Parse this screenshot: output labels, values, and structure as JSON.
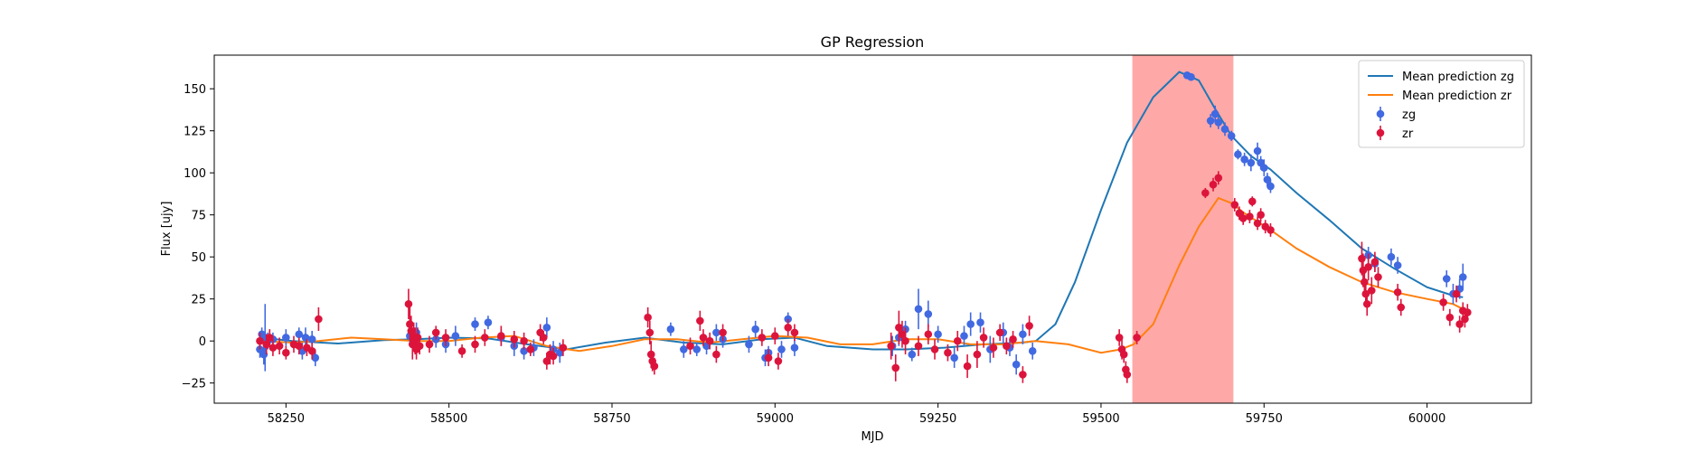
{
  "chart_data": {
    "type": "scatter",
    "title": "GP Regression",
    "xlabel": "MJD",
    "ylabel": "Flux [ujy]",
    "xlim": [
      58140,
      60160
    ],
    "ylim": [
      -37,
      170
    ],
    "xticks": [
      58250,
      58500,
      58750,
      59000,
      59250,
      59500,
      59750,
      60000
    ],
    "yticks": [
      -25,
      0,
      25,
      50,
      75,
      100,
      125,
      150
    ],
    "grid": false,
    "legend_position": "top-right",
    "shaded_region": {
      "x_start": 59548,
      "x_end": 59703,
      "color": "#ffa8a8"
    },
    "series": [
      {
        "name": "Mean prediction zg",
        "kind": "line",
        "color": "#1f77b4",
        "points": [
          [
            58212,
            2
          ],
          [
            58260,
            0
          ],
          [
            58330,
            -1.5
          ],
          [
            58400,
            0.5
          ],
          [
            58450,
            1
          ],
          [
            58500,
            2
          ],
          [
            58560,
            1.5
          ],
          [
            58620,
            -2
          ],
          [
            58680,
            -5
          ],
          [
            58740,
            -1
          ],
          [
            58800,
            2
          ],
          [
            58860,
            -1
          ],
          [
            58920,
            -2
          ],
          [
            58980,
            1
          ],
          [
            59030,
            2
          ],
          [
            59080,
            -3
          ],
          [
            59150,
            -5
          ],
          [
            59200,
            -5
          ],
          [
            59260,
            -4
          ],
          [
            59320,
            -2
          ],
          [
            59380,
            -1
          ],
          [
            59400,
            0
          ],
          [
            59430,
            10
          ],
          [
            59460,
            35
          ],
          [
            59500,
            78
          ],
          [
            59540,
            118
          ],
          [
            59580,
            145
          ],
          [
            59620,
            160
          ],
          [
            59650,
            155
          ],
          [
            59675,
            138
          ],
          [
            59700,
            122
          ],
          [
            59730,
            110
          ],
          [
            59760,
            102
          ],
          [
            59800,
            88
          ],
          [
            59850,
            72
          ],
          [
            59900,
            55
          ],
          [
            59950,
            43
          ],
          [
            60000,
            32
          ],
          [
            60040,
            27
          ],
          [
            60055,
            26
          ]
        ]
      },
      {
        "name": "Mean prediction zr",
        "kind": "line",
        "color": "#ff7f0e",
        "points": [
          [
            58212,
            0
          ],
          [
            58260,
            -1
          ],
          [
            58300,
            0
          ],
          [
            58350,
            2
          ],
          [
            58400,
            1
          ],
          [
            58450,
            0
          ],
          [
            58500,
            0
          ],
          [
            58550,
            2
          ],
          [
            58600,
            3
          ],
          [
            58650,
            -3
          ],
          [
            58700,
            -6
          ],
          [
            58750,
            -3
          ],
          [
            58800,
            1
          ],
          [
            58850,
            1
          ],
          [
            58900,
            -1
          ],
          [
            58950,
            1
          ],
          [
            59000,
            3
          ],
          [
            59050,
            2
          ],
          [
            59100,
            -2
          ],
          [
            59150,
            -2
          ],
          [
            59200,
            1
          ],
          [
            59250,
            1
          ],
          [
            59300,
            -2
          ],
          [
            59350,
            -2
          ],
          [
            59400,
            0
          ],
          [
            59450,
            -2
          ],
          [
            59500,
            -7
          ],
          [
            59530,
            -5
          ],
          [
            59550,
            -2
          ],
          [
            59580,
            10
          ],
          [
            59620,
            45
          ],
          [
            59650,
            68
          ],
          [
            59680,
            85
          ],
          [
            59700,
            82
          ],
          [
            59720,
            76
          ],
          [
            59760,
            66
          ],
          [
            59800,
            55
          ],
          [
            59850,
            44
          ],
          [
            59900,
            35
          ],
          [
            59950,
            29
          ],
          [
            60000,
            25
          ],
          [
            60040,
            22
          ],
          [
            60060,
            18
          ]
        ]
      },
      {
        "name": "zg",
        "kind": "errorbar",
        "color": "#4169e1",
        "points": [
          [
            58210,
            -5,
            5
          ],
          [
            58213,
            4,
            4
          ],
          [
            58216,
            -8,
            6
          ],
          [
            58218,
            2,
            20
          ],
          [
            58222,
            0,
            5
          ],
          [
            58230,
            1,
            4
          ],
          [
            58250,
            2,
            5
          ],
          [
            58270,
            4,
            4
          ],
          [
            58275,
            -6,
            5
          ],
          [
            58280,
            2,
            6
          ],
          [
            58290,
            1,
            5
          ],
          [
            58295,
            -10,
            5
          ],
          [
            58440,
            3,
            5
          ],
          [
            58450,
            5,
            6
          ],
          [
            58480,
            1,
            5
          ],
          [
            58495,
            -2,
            5
          ],
          [
            58510,
            3,
            6
          ],
          [
            58540,
            10,
            4
          ],
          [
            58560,
            11,
            4
          ],
          [
            58580,
            2,
            5
          ],
          [
            58600,
            -3,
            6
          ],
          [
            58615,
            -6,
            5
          ],
          [
            58630,
            -4,
            5
          ],
          [
            58650,
            8,
            6
          ],
          [
            58660,
            -5,
            5
          ],
          [
            58670,
            -7,
            6
          ],
          [
            58840,
            7,
            4
          ],
          [
            58860,
            -5,
            5
          ],
          [
            58880,
            -5,
            4
          ],
          [
            58895,
            -3,
            5
          ],
          [
            58910,
            5,
            5
          ],
          [
            58920,
            1,
            5
          ],
          [
            58960,
            -2,
            5
          ],
          [
            58970,
            7,
            5
          ],
          [
            58985,
            -10,
            5
          ],
          [
            58990,
            -7,
            4
          ],
          [
            59010,
            -5,
            5
          ],
          [
            59020,
            13,
            4
          ],
          [
            59030,
            -4,
            5
          ],
          [
            59180,
            -3,
            6
          ],
          [
            59190,
            2,
            5
          ],
          [
            59200,
            7,
            5
          ],
          [
            59210,
            -8,
            4
          ],
          [
            59220,
            19,
            12
          ],
          [
            59235,
            16,
            8
          ],
          [
            59250,
            4,
            5
          ],
          [
            59275,
            -10,
            6
          ],
          [
            59290,
            3,
            6
          ],
          [
            59300,
            10,
            7
          ],
          [
            59315,
            11,
            6
          ],
          [
            59330,
            -5,
            8
          ],
          [
            59350,
            5,
            6
          ],
          [
            59360,
            -4,
            5
          ],
          [
            59370,
            -14,
            6
          ],
          [
            59380,
            4,
            6
          ],
          [
            59395,
            -6,
            5
          ],
          [
            59632,
            158,
            2
          ],
          [
            59638,
            157,
            2
          ],
          [
            59668,
            131,
            4
          ],
          [
            59675,
            135,
            5
          ],
          [
            59680,
            130,
            4
          ],
          [
            59690,
            126,
            4
          ],
          [
            59700,
            122,
            3
          ],
          [
            59710,
            111,
            3
          ],
          [
            59720,
            108,
            4
          ],
          [
            59730,
            106,
            5
          ],
          [
            59740,
            113,
            5
          ],
          [
            59745,
            106,
            4
          ],
          [
            59750,
            103,
            5
          ],
          [
            59755,
            96,
            4
          ],
          [
            59760,
            92,
            4
          ],
          [
            59910,
            51,
            5
          ],
          [
            59920,
            46,
            5
          ],
          [
            59945,
            50,
            5
          ],
          [
            59955,
            45,
            5
          ],
          [
            60030,
            37,
            5
          ],
          [
            60040,
            28,
            6
          ],
          [
            60050,
            31,
            6
          ],
          [
            60055,
            38,
            8
          ]
        ]
      },
      {
        "name": "zr",
        "kind": "errorbar",
        "color": "#dc143c",
        "points": [
          [
            58210,
            0,
            5
          ],
          [
            58220,
            -2,
            6
          ],
          [
            58225,
            2,
            5
          ],
          [
            58230,
            -4,
            5
          ],
          [
            58240,
            -3,
            5
          ],
          [
            58250,
            -7,
            4
          ],
          [
            58262,
            -2,
            5
          ],
          [
            58270,
            -3,
            5
          ],
          [
            58282,
            -4,
            5
          ],
          [
            58290,
            -6,
            5
          ],
          [
            58300,
            13,
            7
          ],
          [
            58438,
            22,
            9
          ],
          [
            58440,
            10,
            10
          ],
          [
            58442,
            6,
            9
          ],
          [
            58444,
            -2,
            9
          ],
          [
            58446,
            3,
            8
          ],
          [
            58448,
            0,
            8
          ],
          [
            58450,
            -5,
            6
          ],
          [
            58452,
            2,
            6
          ],
          [
            58455,
            -3,
            5
          ],
          [
            58470,
            -2,
            5
          ],
          [
            58480,
            5,
            4
          ],
          [
            58495,
            2,
            5
          ],
          [
            58520,
            -6,
            4
          ],
          [
            58540,
            -2,
            5
          ],
          [
            58555,
            2,
            5
          ],
          [
            58580,
            3,
            6
          ],
          [
            58600,
            1,
            5
          ],
          [
            58615,
            0,
            5
          ],
          [
            58625,
            -5,
            4
          ],
          [
            58640,
            5,
            5
          ],
          [
            58645,
            2,
            4
          ],
          [
            58650,
            -12,
            5
          ],
          [
            58655,
            -8,
            6
          ],
          [
            58660,
            -9,
            5
          ],
          [
            58675,
            -4,
            5
          ],
          [
            58805,
            14,
            6
          ],
          [
            58808,
            5,
            7
          ],
          [
            58810,
            -8,
            8
          ],
          [
            58812,
            -12,
            6
          ],
          [
            58815,
            -15,
            5
          ],
          [
            58870,
            -3,
            5
          ],
          [
            58885,
            12,
            6
          ],
          [
            58890,
            2,
            5
          ],
          [
            58900,
            0,
            5
          ],
          [
            58910,
            -8,
            5
          ],
          [
            58920,
            5,
            5
          ],
          [
            58980,
            2,
            5
          ],
          [
            58990,
            -10,
            5
          ],
          [
            59000,
            3,
            5
          ],
          [
            59005,
            -12,
            5
          ],
          [
            59020,
            8,
            5
          ],
          [
            59030,
            5,
            5
          ],
          [
            59178,
            -3,
            8
          ],
          [
            59185,
            -16,
            8
          ],
          [
            59190,
            8,
            10
          ],
          [
            59195,
            4,
            8
          ],
          [
            59200,
            0,
            8
          ],
          [
            59220,
            -3,
            6
          ],
          [
            59235,
            4,
            6
          ],
          [
            59245,
            -5,
            6
          ],
          [
            59265,
            -7,
            5
          ],
          [
            59280,
            0,
            6
          ],
          [
            59295,
            -15,
            7
          ],
          [
            59310,
            -8,
            8
          ],
          [
            59320,
            2,
            6
          ],
          [
            59335,
            -4,
            6
          ],
          [
            59345,
            5,
            5
          ],
          [
            59355,
            -3,
            5
          ],
          [
            59365,
            1,
            5
          ],
          [
            59380,
            -20,
            5
          ],
          [
            59390,
            9,
            6
          ],
          [
            59528,
            2,
            5
          ],
          [
            59532,
            -5,
            6
          ],
          [
            59535,
            -8,
            5
          ],
          [
            59538,
            -17,
            5
          ],
          [
            59540,
            -20,
            5
          ],
          [
            59555,
            2,
            4
          ],
          [
            59660,
            88,
            3
          ],
          [
            59672,
            93,
            4
          ],
          [
            59680,
            97,
            4
          ],
          [
            59705,
            81,
            4
          ],
          [
            59712,
            76,
            4
          ],
          [
            59718,
            73,
            4
          ],
          [
            59728,
            74,
            4
          ],
          [
            59732,
            83,
            3
          ],
          [
            59740,
            70,
            4
          ],
          [
            59745,
            75,
            4
          ],
          [
            59752,
            68,
            4
          ],
          [
            59760,
            66,
            4
          ],
          [
            59900,
            49,
            10
          ],
          [
            59902,
            42,
            10
          ],
          [
            59904,
            35,
            9
          ],
          [
            59906,
            28,
            8
          ],
          [
            59908,
            22,
            7
          ],
          [
            59910,
            44,
            8
          ],
          [
            59915,
            30,
            8
          ],
          [
            59920,
            47,
            6
          ],
          [
            59925,
            38,
            6
          ],
          [
            59955,
            29,
            5
          ],
          [
            59960,
            20,
            5
          ],
          [
            60025,
            23,
            5
          ],
          [
            60035,
            14,
            5
          ],
          [
            60045,
            28,
            5
          ],
          [
            60050,
            10,
            5
          ],
          [
            60055,
            18,
            5
          ],
          [
            60058,
            13,
            5
          ],
          [
            60062,
            17,
            5
          ]
        ]
      }
    ]
  }
}
